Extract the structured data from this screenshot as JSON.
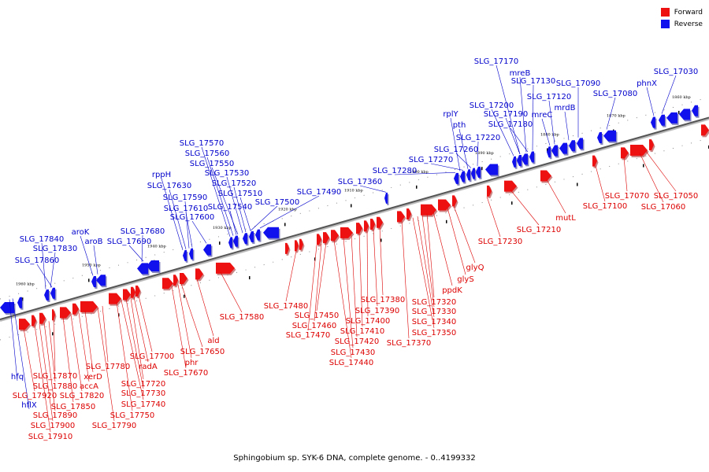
{
  "legend": [
    {
      "label": "Forward",
      "color": "#ee1111"
    },
    {
      "label": "Reverse",
      "color": "#1111ee"
    }
  ],
  "footer": "Sphingobium sp. SYK-6 DNA, complete genome. - 0..4199332",
  "scale_labels": [
    "1960 kbp",
    "1950 kbp",
    "1940 kbp",
    "1930 kbp",
    "1920 kbp",
    "1910 kbp",
    "1900 kbp",
    "1890 kbp",
    "1880 kbp",
    "1870 kbp",
    "1860 kbp"
  ],
  "reverse_genes": [
    "SLG_17170",
    "mreB",
    "SLG_17130",
    "SLG_17120",
    "mrdB",
    "SLG_17090",
    "SLG_17080",
    "phnX",
    "SLG_17030",
    "mreC",
    "SLG_17200",
    "SLG_17190",
    "SLG_17180",
    "rplY",
    "pth",
    "SLG_17220",
    "SLG_17260",
    "SLG_17270",
    "SLG_17280",
    "SLG_17360",
    "SLG_17490",
    "SLG_17500",
    "SLG_17570",
    "SLG_17560",
    "SLG_17550",
    "SLG_17530",
    "SLG_17520",
    "SLG_17510",
    "SLG_17540",
    "rppH",
    "SLG_17630",
    "SLG_17590",
    "SLG_17610",
    "SLG_17600",
    "SLG_17680",
    "SLG_17690",
    "aroK",
    "aroB",
    "SLG_17840",
    "SLG_17830",
    "SLG_17860",
    "hfq",
    "hflX"
  ],
  "forward_genes": [
    "SLG_17050",
    "SLG_17060",
    "SLG_17070",
    "SLG_17100",
    "mutL",
    "SLG_17210",
    "SLG_17230",
    "glyQ",
    "glyS",
    "ppdK",
    "SLG_17320",
    "SLG_17330",
    "SLG_17340",
    "SLG_17350",
    "SLG_17370",
    "SLG_17380",
    "SLG_17390",
    "SLG_17400",
    "SLG_17410",
    "SLG_17420",
    "SLG_17430",
    "SLG_17440",
    "SLG_17450",
    "SLG_17460",
    "SLG_17470",
    "SLG_17480",
    "SLG_17580",
    "ald",
    "SLG_17650",
    "phr",
    "SLG_17670",
    "SLG_17700",
    "radA",
    "SLG_17720",
    "SLG_17730",
    "SLG_17740",
    "SLG_17750",
    "SLG_17790",
    "SLG_17780",
    "xerD",
    "accA",
    "SLG_17820",
    "SLG_17850",
    "SLG_17870",
    "SLG_17880",
    "SLG_17890",
    "SLG_17900",
    "SLG_17910",
    "SLG_17920"
  ]
}
